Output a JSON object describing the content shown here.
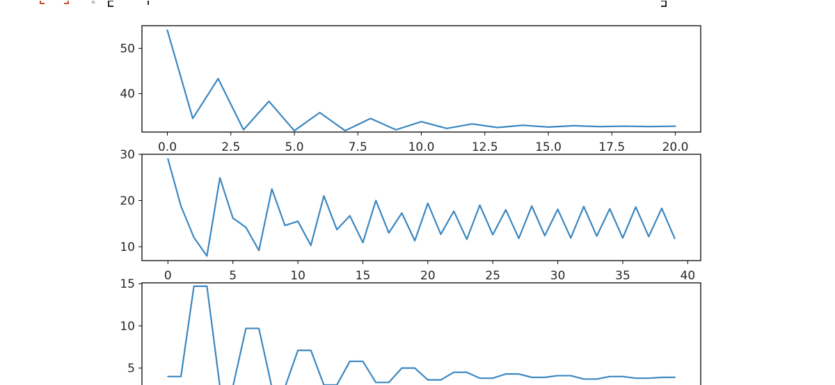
{
  "colors": {
    "series": "#3a86c0",
    "prompt": "#c0522a",
    "text": "#262626"
  },
  "chart_data": [
    {
      "type": "line",
      "title": "",
      "xlabel": "",
      "ylabel": "",
      "xlim": [
        -1,
        21
      ],
      "ylim": [
        31.5,
        55
      ],
      "xticks": [
        0,
        2.5,
        5,
        7.5,
        10,
        12.5,
        15,
        17.5,
        20
      ],
      "xtick_labels": [
        "0.0",
        "2.5",
        "5.0",
        "7.5",
        "10.0",
        "12.5",
        "15.0",
        "17.5",
        "20.0"
      ],
      "yticks": [
        40,
        50
      ],
      "ytick_labels": [
        "40",
        "50"
      ],
      "grid": false,
      "series": [
        {
          "x": [
            0,
            1,
            2,
            3,
            4,
            5,
            6,
            7,
            8,
            9,
            10,
            11,
            12,
            13,
            14,
            15,
            16,
            17,
            18,
            19,
            20
          ],
          "y": [
            54,
            34.5,
            43.3,
            32,
            38.3,
            31.8,
            35.8,
            31.8,
            34.5,
            32,
            33.8,
            32.3,
            33.3,
            32.5,
            33,
            32.6,
            32.9,
            32.7,
            32.8,
            32.7,
            32.8
          ]
        }
      ]
    },
    {
      "type": "line",
      "title": "",
      "xlabel": "",
      "ylabel": "",
      "xlim": [
        -2,
        41
      ],
      "ylim": [
        7,
        30
      ],
      "xticks": [
        0,
        5,
        10,
        15,
        20,
        25,
        30,
        35,
        40
      ],
      "xtick_labels": [
        "0",
        "5",
        "10",
        "15",
        "20",
        "25",
        "30",
        "35",
        "40"
      ],
      "yticks": [
        10,
        20,
        30
      ],
      "ytick_labels": [
        "10",
        "20",
        "30"
      ],
      "grid": false,
      "series": [
        {
          "x": [
            0,
            1,
            2,
            3,
            4,
            5,
            6,
            7,
            8,
            9,
            10,
            11,
            12,
            13,
            14,
            15,
            16,
            17,
            18,
            19,
            20,
            21,
            22,
            23,
            24,
            25,
            26,
            27,
            28,
            29,
            30,
            31,
            32,
            33,
            34,
            35,
            36,
            37,
            38,
            39
          ],
          "y": [
            29,
            18.8,
            12,
            8,
            24.9,
            16.2,
            14.2,
            9.2,
            22.5,
            14.6,
            15.5,
            10.3,
            21,
            13.7,
            16.7,
            10.9,
            20,
            13,
            17.3,
            11.3,
            19.4,
            12.7,
            17.7,
            11.6,
            19,
            12.6,
            18,
            11.8,
            18.8,
            12.4,
            18.1,
            11.9,
            18.7,
            12.3,
            18.2,
            11.9,
            18.6,
            12.2,
            18.3,
            11.8
          ]
        }
      ]
    },
    {
      "type": "line",
      "title": "",
      "xlabel": "",
      "ylabel": "",
      "xlim": [
        -2,
        41
      ],
      "ylim": [
        2.5,
        15.1
      ],
      "yticks": [
        5,
        10,
        15
      ],
      "ytick_labels": [
        "5",
        "10",
        "15"
      ],
      "grid": false,
      "series": [
        {
          "x": [
            0,
            1,
            2,
            3,
            4,
            5,
            6,
            7,
            8,
            9,
            10,
            11,
            12,
            13,
            14,
            15,
            16,
            17,
            18,
            19,
            20,
            21,
            22,
            23,
            24,
            25,
            26,
            27,
            28,
            29,
            30,
            31,
            32,
            33,
            34,
            35,
            36,
            37,
            38,
            39
          ],
          "y": [
            4,
            4,
            14.7,
            14.7,
            2.8,
            2.8,
            9.7,
            9.7,
            2.7,
            2.7,
            7.1,
            7.1,
            3,
            3,
            5.8,
            5.8,
            3.3,
            3.3,
            5,
            5,
            3.6,
            3.6,
            4.5,
            4.5,
            3.8,
            3.8,
            4.3,
            4.3,
            3.9,
            3.9,
            4.1,
            4.1,
            3.7,
            3.7,
            4,
            4,
            3.8,
            3.8,
            3.9,
            3.9
          ]
        }
      ]
    }
  ]
}
